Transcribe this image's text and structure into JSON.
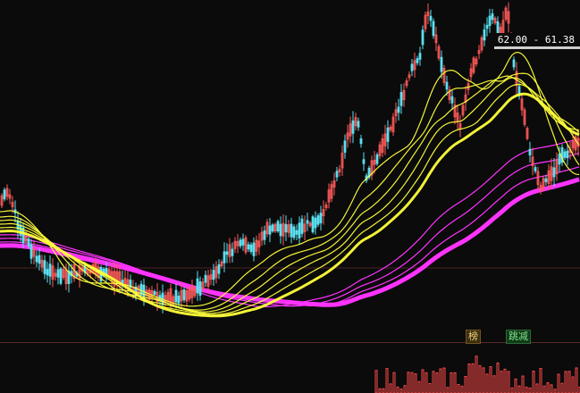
{
  "price_tag": {
    "text": "62.00 - 61.38"
  },
  "badges": [
    {
      "label": "榜"
    },
    {
      "label": "跳减"
    }
  ],
  "colors": {
    "background": "#0b0b0b",
    "up_candle": "#ff5a5a",
    "down_candle": "#5ae0f0",
    "ma_short": "#ffff3a",
    "ma_long": "#ff33ff",
    "volume_up": "#ff4a4a",
    "grid": "#4a2222"
  }
}
